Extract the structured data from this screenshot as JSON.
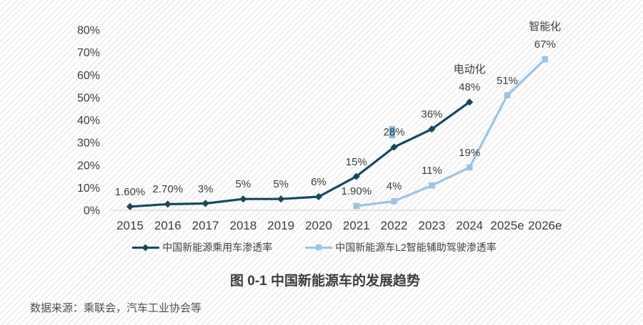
{
  "chart_data": {
    "type": "line",
    "title": "图 0-1 中国新能源车的发展趋势",
    "source": "数据来源：乘联会，汽车工业协会等",
    "categories": [
      "2015",
      "2016",
      "2017",
      "2018",
      "2019",
      "2020",
      "2021",
      "2022",
      "2023",
      "2024",
      "2025e",
      "2026e"
    ],
    "y_axis": {
      "ticks": [
        "80%",
        "70%",
        "60%",
        "50%",
        "40%",
        "30%",
        "20%",
        "10%",
        "0%"
      ],
      "min": 0,
      "max": 80,
      "grid": false
    },
    "legend_position": "bottom",
    "series": [
      {
        "name": "中国新能源乘用车渗透率",
        "color": "#17485c",
        "marker": "diamond",
        "start_index": 0,
        "values": [
          1.6,
          2.7,
          3,
          5,
          5,
          6,
          15,
          28,
          36,
          48
        ],
        "labels": [
          "1.60%",
          "2.70%",
          "3%",
          "5%",
          "5%",
          "6%",
          "15%",
          "28%",
          "36%",
          "48%"
        ],
        "annotation": {
          "text": "电动化",
          "index": 9
        },
        "highlight": {
          "index": 7,
          "char_index": 1,
          "bg": "#8cb4d7",
          "text_color": "#17485c"
        }
      },
      {
        "name": "中国新能源车L2智能辅助驾驶渗透率",
        "color": "#9dc3e6",
        "marker": "square",
        "start_index": 6,
        "values": [
          1.9,
          4,
          11,
          19,
          51,
          67
        ],
        "labels": [
          "1.90%",
          "4%",
          "11%",
          "19%",
          "51%",
          "67%"
        ],
        "annotation": {
          "text": "智能化",
          "index": 5
        }
      }
    ],
    "colors": {
      "axis_text": "#3d3d3d",
      "baseline": "#d6d6d6",
      "label_text": "#3d3d3d"
    }
  }
}
